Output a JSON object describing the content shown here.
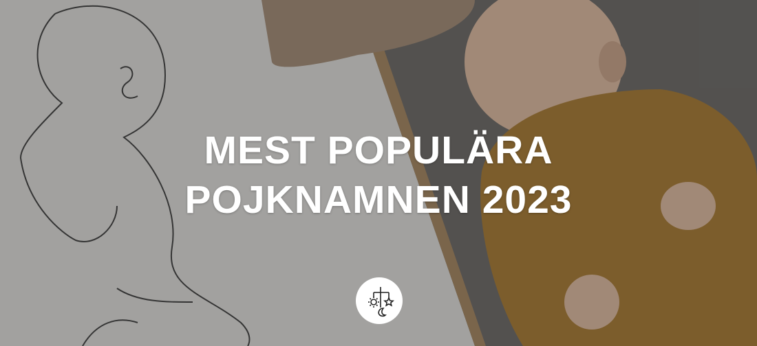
{
  "hero": {
    "title_line1": "MEST POPULÄRA",
    "title_line2": "POJKNAMNEN 2023",
    "logo_icon": "baby-mobile-sun-star-moon-icon",
    "colors": {
      "text": "#ffffff",
      "logo_bg": "#ffffff"
    }
  }
}
